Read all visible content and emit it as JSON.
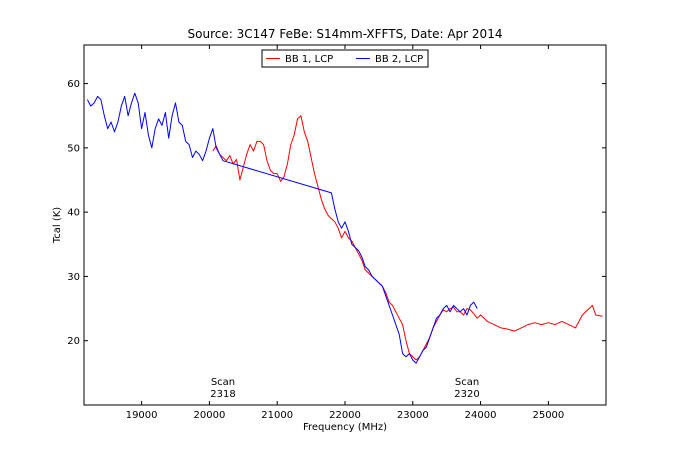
{
  "chart_data": {
    "type": "line",
    "title": "Source: 3C147 FeBe: S14mm-XFFTS, Date: Apr 2014",
    "xlabel": "Frequency (MHz)",
    "ylabel": "Tcal (K)",
    "xlim": [
      18150,
      25850
    ],
    "ylim": [
      10,
      66
    ],
    "xticks": [
      19000,
      20000,
      21000,
      22000,
      23000,
      24000,
      25000
    ],
    "yticks": [
      20,
      30,
      40,
      50,
      60
    ],
    "grid": false,
    "legend_placement": "top-center",
    "annotations": [
      {
        "line1": "Scan",
        "line2": "2318",
        "x": 20200
      },
      {
        "line1": "Scan",
        "line2": "2320",
        "x": 23800
      }
    ],
    "series": [
      {
        "name": "BB 1, LCP",
        "color": "#ff0000",
        "x": [
          20050,
          20100,
          20150,
          20200,
          20250,
          20300,
          20350,
          20400,
          20450,
          20500,
          20550,
          20600,
          20650,
          20700,
          20750,
          20800,
          20850,
          20900,
          20950,
          21000,
          21050,
          21100,
          21150,
          21200,
          21250,
          21300,
          21350,
          21400,
          21450,
          21500,
          21550,
          21600,
          21650,
          21700,
          21750,
          21800,
          21850,
          21900,
          21950,
          22000,
          22050,
          22100,
          22150,
          22200,
          22250,
          22300,
          22350,
          22400,
          22450,
          22500,
          22550,
          22600,
          22650,
          22700,
          22750,
          22800,
          22850,
          22900,
          22950,
          23000,
          23050,
          23100,
          23150,
          23200,
          23250,
          23300,
          23350,
          23400,
          23450,
          23500,
          23550,
          23600,
          23650,
          23700,
          23750,
          23800,
          23850,
          23900,
          23950,
          24000,
          24100,
          24200,
          24300,
          24400,
          24500,
          24600,
          24700,
          24800,
          24900,
          25000,
          25100,
          25200,
          25300,
          25400,
          25500,
          25600,
          25650,
          25700,
          25800
        ],
        "y": [
          49.5,
          50.3,
          49.0,
          48.5,
          48.0,
          48.8,
          47.5,
          48.2,
          45.0,
          47.0,
          49.0,
          50.5,
          49.5,
          51.0,
          51.0,
          50.5,
          48.0,
          46.5,
          46.0,
          46.0,
          44.8,
          45.5,
          47.5,
          50.5,
          52.0,
          54.5,
          55.0,
          52.5,
          51.0,
          48.5,
          46.0,
          44.0,
          42.0,
          40.5,
          39.5,
          39.0,
          38.5,
          37.5,
          36.0,
          37.0,
          36.0,
          35.5,
          34.5,
          33.5,
          32.5,
          31.0,
          30.5,
          30.0,
          29.5,
          29.0,
          28.5,
          27.5,
          26.0,
          25.5,
          24.5,
          23.5,
          22.5,
          20.0,
          18.0,
          17.5,
          17.0,
          17.5,
          18.5,
          19.5,
          20.5,
          22.0,
          23.0,
          24.0,
          24.8,
          24.5,
          25.0,
          25.2,
          24.5,
          24.5,
          24.0,
          25.0,
          24.8,
          24.2,
          23.5,
          24.0,
          23.0,
          22.5,
          22.0,
          21.8,
          21.5,
          22.0,
          22.5,
          22.8,
          22.5,
          22.8,
          22.5,
          23.0,
          22.5,
          22.0,
          24.0,
          25.0,
          25.5,
          24.0,
          23.8
        ]
      },
      {
        "name": "BB 2, LCP",
        "color": "#0000ff",
        "x": [
          18200,
          18250,
          18300,
          18350,
          18400,
          18450,
          18500,
          18550,
          18600,
          18650,
          18700,
          18750,
          18800,
          18850,
          18900,
          18950,
          19000,
          19050,
          19100,
          19150,
          19200,
          19250,
          19300,
          19350,
          19400,
          19450,
          19500,
          19550,
          19600,
          19650,
          19700,
          19750,
          19800,
          19850,
          19900,
          19950,
          20000,
          20050,
          20100,
          20150,
          20200,
          21800,
          21850,
          21900,
          21950,
          22000,
          22050,
          22100,
          22150,
          22200,
          22250,
          22300,
          22350,
          22400,
          22450,
          22500,
          22550,
          22600,
          22650,
          22700,
          22750,
          22800,
          22850,
          22900,
          22950,
          23000,
          23050,
          23100,
          23150,
          23200,
          23250,
          23300,
          23350,
          23400,
          23450,
          23500,
          23550,
          23600,
          23650,
          23700,
          23750,
          23800,
          23850,
          23900,
          23950
        ],
        "y": [
          57.5,
          56.5,
          57.0,
          58.0,
          57.5,
          55.0,
          53.0,
          54.0,
          52.5,
          54.0,
          56.5,
          58.0,
          55.0,
          57.0,
          58.5,
          57.0,
          53.0,
          55.5,
          52.0,
          50.0,
          53.0,
          54.5,
          53.5,
          55.5,
          51.5,
          55.0,
          57.0,
          54.0,
          53.5,
          51.0,
          50.5,
          48.5,
          49.5,
          49.0,
          48.0,
          49.5,
          51.5,
          53.0,
          50.0,
          49.0,
          48.0,
          43.0,
          40.5,
          38.5,
          37.5,
          38.5,
          37.0,
          35.0,
          34.5,
          34.0,
          33.0,
          31.5,
          31.0,
          30.0,
          29.5,
          29.0,
          28.5,
          27.0,
          25.5,
          24.0,
          22.5,
          21.0,
          18.0,
          17.5,
          18.0,
          17.0,
          16.5,
          17.5,
          18.5,
          19.0,
          20.5,
          22.0,
          23.5,
          24.0,
          25.0,
          25.5,
          24.5,
          25.5,
          25.0,
          24.5,
          25.0,
          24.0,
          25.5,
          26.0,
          25.0
        ]
      }
    ],
    "colors": {
      "background": "#ffffff",
      "axes": "#000000"
    }
  }
}
